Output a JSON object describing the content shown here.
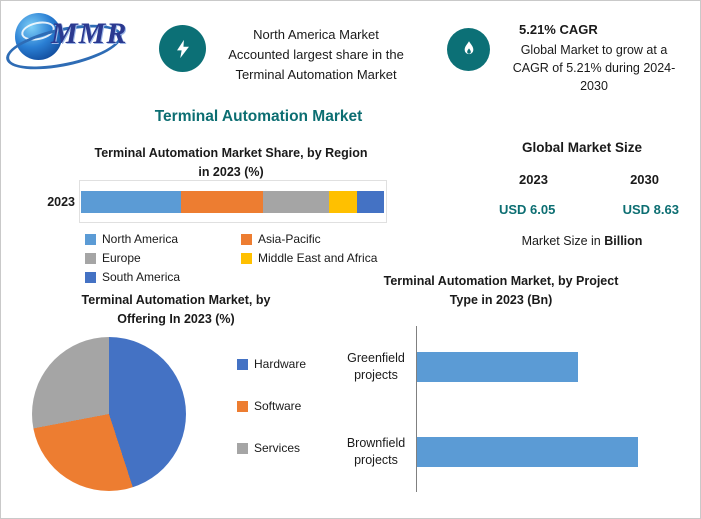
{
  "colors": {
    "accent_teal": "#0C6E72",
    "icon_circle": "#0C7076",
    "bar_blue": "#5B9BD5"
  },
  "header": {
    "logo_text": "MMR",
    "callout_region": {
      "icon": "lightning-bolt-icon",
      "text": "North America Market\nAccounted largest share in the\nTerminal Automation Market"
    },
    "callout_cagr": {
      "icon": "flame-icon",
      "title": "5.21% CAGR",
      "text": "Global Market to grow at a\nCAGR of 5.21% during 2024-\n2030"
    }
  },
  "page_title": "Terminal Automation Market",
  "market_size": {
    "title": "Global Market Size",
    "year_left": "2023",
    "year_right": "2030",
    "value_left": "USD 6.05",
    "value_right": "USD 8.63",
    "note_prefix": "Market Size in ",
    "note_bold": "Billion"
  },
  "chart_data": [
    {
      "type": "bar",
      "subtype": "stacked-horizontal-100pct",
      "title": "Terminal Automation Market Share, by Region in 2023 (%)",
      "categories": [
        "2023"
      ],
      "series": [
        {
          "name": "North America",
          "color": "#5B9BD5",
          "values": [
            33
          ]
        },
        {
          "name": "Asia-Pacific",
          "color": "#ED7D31",
          "values": [
            27
          ]
        },
        {
          "name": "Europe",
          "color": "#A5A5A5",
          "values": [
            22
          ]
        },
        {
          "name": "Middle East and Africa",
          "color": "#FFC000",
          "values": [
            9
          ]
        },
        {
          "name": "South America",
          "color": "#4472C4",
          "values": [
            9
          ]
        }
      ],
      "xlim": [
        0,
        100
      ],
      "legend_position": "bottom"
    },
    {
      "type": "pie",
      "title": "Terminal Automation Market, by Offering In 2023 (%)",
      "labels": [
        "Hardware",
        "Software",
        "Services"
      ],
      "values": [
        45,
        27,
        28
      ],
      "colors": [
        "#4472C4",
        "#ED7D31",
        "#A5A5A5"
      ],
      "start_angle_deg": 0,
      "direction": "clockwise",
      "legend_position": "right"
    },
    {
      "type": "bar",
      "subtype": "horizontal",
      "title": "Terminal Automation Market, by Project Type in 2023 (Bn)",
      "categories": [
        "Greenfield projects",
        "Brownfield projects"
      ],
      "values": [
        2.55,
        3.5
      ],
      "xlim": [
        0,
        4
      ],
      "bar_color": "#5B9BD5"
    }
  ]
}
